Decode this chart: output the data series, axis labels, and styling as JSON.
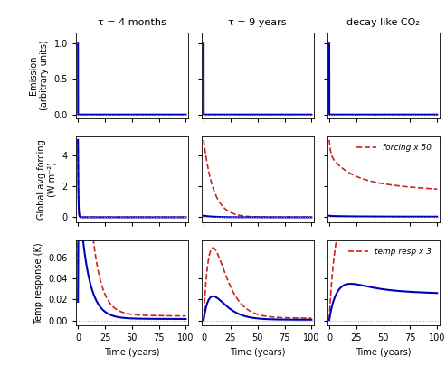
{
  "col_titles": [
    "τ = 4 months",
    "τ = 9 years",
    "decay like CO₂"
  ],
  "row_ylabels": [
    "Emission\n(arbitrary units)",
    "Global avg forcing\n(W m⁻²)",
    "Temp response (K)"
  ],
  "xlabel": "Time (years)",
  "xticks": [
    0,
    25,
    50,
    75,
    100
  ],
  "emission_ylim": [
    -0.05,
    1.15
  ],
  "emission_yticks": [
    0,
    0.5,
    1
  ],
  "forcing_ylim": [
    -0.3,
    5.2
  ],
  "forcing_yticks": [
    0,
    2,
    4
  ],
  "temp_ylim": [
    -0.005,
    0.076
  ],
  "temp_yticks": [
    0.0,
    0.02,
    0.04,
    0.06
  ],
  "blue_color": "#0000bb",
  "red_color": "#cc2222",
  "dotted_color": "#aaaaaa",
  "legend_forcing": "forcing x 50",
  "legend_temp": "temp resp x 3",
  "dt": 0.05,
  "xlim": [
    -2,
    102
  ]
}
